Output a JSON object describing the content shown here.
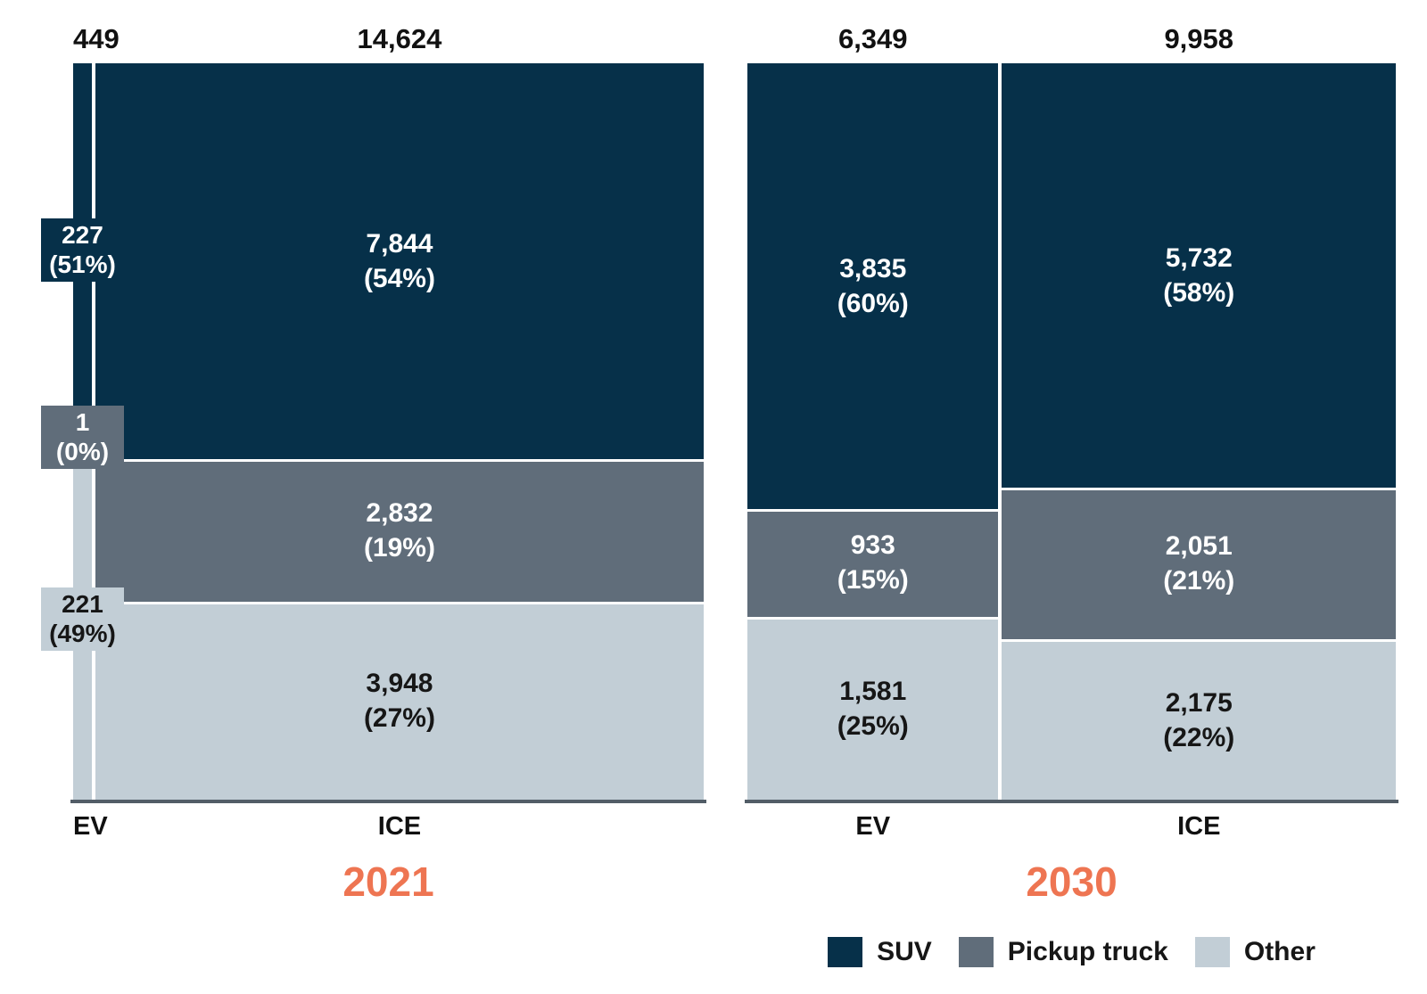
{
  "chart_data": [
    {
      "type": "mosaic",
      "title": "2021",
      "columns": [
        {
          "label": "EV",
          "total": 449,
          "total_label": "449",
          "label_mode": "callout",
          "segments": [
            {
              "category": "SUV",
              "value": 227,
              "value_label": "227",
              "pct_label": "(51%)",
              "text": "light"
            },
            {
              "category": "Pickup truck",
              "value": 1,
              "value_label": "1",
              "pct_label": "(0%)",
              "text": "light"
            },
            {
              "category": "Other",
              "value": 221,
              "value_label": "221",
              "pct_label": "(49%)",
              "text": "dark"
            }
          ]
        },
        {
          "label": "ICE",
          "total": 14624,
          "total_label": "14,624",
          "label_mode": "inside",
          "segments": [
            {
              "category": "SUV",
              "value": 7844,
              "value_label": "7,844",
              "pct_label": "(54%)",
              "text": "light"
            },
            {
              "category": "Pickup truck",
              "value": 2832,
              "value_label": "2,832",
              "pct_label": "(19%)",
              "text": "light"
            },
            {
              "category": "Other",
              "value": 3948,
              "value_label": "3,948",
              "pct_label": "(27%)",
              "text": "dark"
            }
          ]
        }
      ]
    },
    {
      "type": "mosaic",
      "title": "2030",
      "columns": [
        {
          "label": "EV",
          "total": 6349,
          "total_label": "6,349",
          "label_mode": "inside",
          "segments": [
            {
              "category": "SUV",
              "value": 3835,
              "value_label": "3,835",
              "pct_label": "(60%)",
              "text": "light"
            },
            {
              "category": "Pickup truck",
              "value": 933,
              "value_label": "933",
              "pct_label": "(15%)",
              "text": "light"
            },
            {
              "category": "Other",
              "value": 1581,
              "value_label": "1,581",
              "pct_label": "(25%)",
              "text": "dark"
            }
          ]
        },
        {
          "label": "ICE",
          "total": 9958,
          "total_label": "9,958",
          "label_mode": "inside",
          "segments": [
            {
              "category": "SUV",
              "value": 5732,
              "value_label": "5,732",
              "pct_label": "(58%)",
              "text": "light"
            },
            {
              "category": "Pickup truck",
              "value": 2051,
              "value_label": "2,051",
              "pct_label": "(21%)",
              "text": "light"
            },
            {
              "category": "Other",
              "value": 2175,
              "value_label": "2,175",
              "pct_label": "(22%)",
              "text": "dark"
            }
          ]
        }
      ]
    }
  ],
  "legend": {
    "position": "bottom-right",
    "items": [
      {
        "label": "SUV",
        "color": "#063049"
      },
      {
        "label": "Pickup truck",
        "color": "#606d7a"
      },
      {
        "label": "Other",
        "color": "#c2ced6"
      }
    ]
  },
  "colors": {
    "SUV": "#063049",
    "Pickup truck": "#606d7a",
    "Other": "#c2ced6",
    "year_label": "#ee7552",
    "axis_line": "#525d67",
    "light_text": "#ffffff",
    "dark_text": "#161616"
  }
}
